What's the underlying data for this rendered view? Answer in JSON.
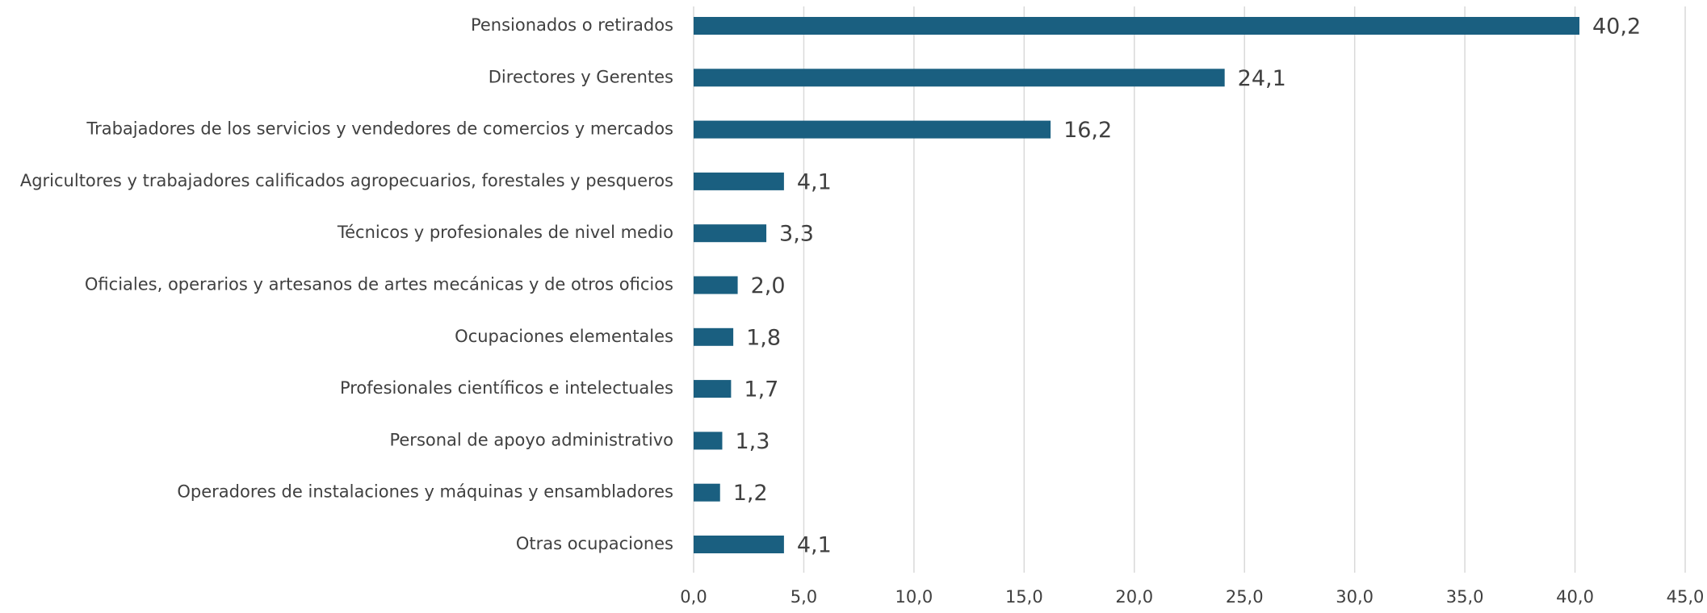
{
  "chart_data": {
    "type": "barh",
    "categories": [
      "Pensionados o retirados",
      "Directores y Gerentes",
      "Trabajadores de los servicios y vendedores de comercios y mercados",
      "Agricultores y trabajadores calificados agropecuarios, forestales y pesqueros",
      "Técnicos y profesionales de nivel medio",
      "Oficiales, operarios y artesanos de artes mecánicas y de otros oficios",
      "Ocupaciones elementales",
      "Profesionales científicos e intelectuales",
      "Personal de apoyo administrativo",
      "Operadores de instalaciones y máquinas y ensambladores",
      "Otras ocupaciones"
    ],
    "values": [
      40.2,
      24.1,
      16.2,
      4.1,
      3.3,
      2.0,
      1.8,
      1.7,
      1.3,
      1.2,
      4.1
    ],
    "value_labels": [
      "40,2",
      "24,1",
      "16,2",
      "4,1",
      "3,3",
      "2,0",
      "1,8",
      "1,7",
      "1,3",
      "1,2",
      "4,1"
    ],
    "color": "#1a5f80",
    "xlim": [
      0,
      45
    ],
    "xticks": [
      {
        "value": 0,
        "label": "0,0"
      },
      {
        "value": 5,
        "label": "5,0"
      },
      {
        "value": 10,
        "label": "10,0"
      },
      {
        "value": 15,
        "label": "15,0"
      },
      {
        "value": 20,
        "label": "20,0"
      },
      {
        "value": 25,
        "label": "25,0"
      },
      {
        "value": 30,
        "label": "30,0"
      },
      {
        "value": 35,
        "label": "35,0"
      },
      {
        "value": 40,
        "label": "40,0"
      },
      {
        "value": 45,
        "label": "45,0"
      }
    ],
    "grid": true
  }
}
